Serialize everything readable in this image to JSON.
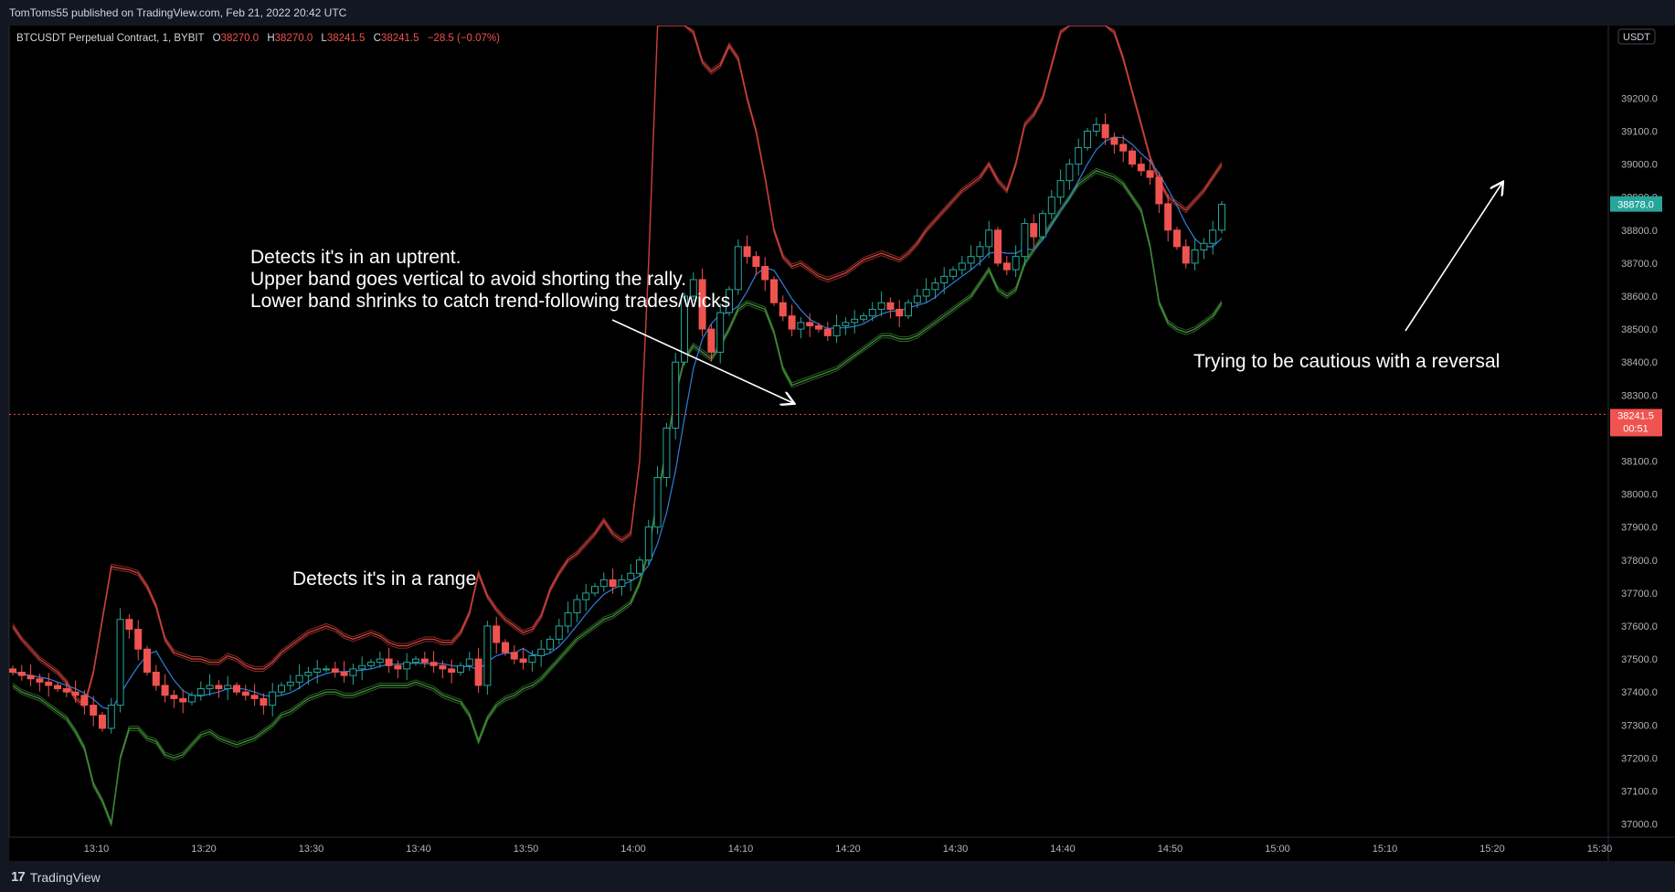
{
  "header": {
    "published": "TomToms55 published on TradingView.com, Feb 21, 2022 20:42 UTC"
  },
  "footer": {
    "brand_logo": "17",
    "brand": "TradingView"
  },
  "symbol_bar": {
    "symbol": "BTCUSDT Perpetual Contract, 1, BYBIT",
    "o_label": "O",
    "o": "38270.0",
    "h_label": "H",
    "h": "38270.0",
    "l_label": "L",
    "l": "38241.5",
    "c_label": "C",
    "c": "38241.5",
    "change": "−28.5 (−0.07%)"
  },
  "annotations": {
    "uptrend_lines": [
      "Detects it's in an uptrent.",
      "Upper band goes vertical to avoid shorting the rally.",
      "Lower band shrinks to catch trend-following trades/wicks"
    ],
    "range": "Detects it's in a range",
    "reversal": "Trying to be cautious with a reversal"
  },
  "price_axis": {
    "currency": "USDT",
    "last_price": "38878.0",
    "current_price": "38241.5",
    "countdown": "00:51"
  },
  "colors": {
    "background": "#000000",
    "up": "#26a69a",
    "down": "#ef5350",
    "upper_band": "#c8403a",
    "lower_band": "#3f8a35",
    "mid_line": "#2f7fd8",
    "current_price_line": "#ef5350",
    "last_price_tag": "#26a69a"
  },
  "chart_data": {
    "type": "candlestick",
    "ylim": [
      36960,
      39420
    ],
    "y_ticks": [
      37000,
      37100,
      37200,
      37300,
      37400,
      37500,
      37600,
      37700,
      37800,
      37900,
      38000,
      38100,
      38200,
      38300,
      38400,
      38500,
      38600,
      38700,
      38800,
      38900,
      39000,
      39100,
      39200
    ],
    "x_ticks": [
      "13:10",
      "13:20",
      "13:30",
      "13:40",
      "13:50",
      "14:00",
      "14:10",
      "14:20",
      "14:30",
      "14:40",
      "14:50",
      "15:00",
      "15:10",
      "15:20",
      "15:30"
    ],
    "close_series": [
      37460,
      37450,
      37440,
      37430,
      37420,
      37410,
      37400,
      37390,
      37360,
      37330,
      37290,
      37360,
      37620,
      37590,
      37530,
      37460,
      37420,
      37390,
      37380,
      37370,
      37390,
      37410,
      37420,
      37410,
      37420,
      37400,
      37390,
      37380,
      37360,
      37400,
      37420,
      37430,
      37450,
      37460,
      37470,
      37470,
      37460,
      37450,
      37470,
      37480,
      37490,
      37500,
      37480,
      37470,
      37490,
      37500,
      37490,
      37480,
      37470,
      37460,
      37480,
      37500,
      37420,
      37600,
      37550,
      37520,
      37500,
      37490,
      37510,
      37530,
      37560,
      37600,
      37640,
      37680,
      37700,
      37720,
      37740,
      37720,
      37740,
      37760,
      37800,
      37900,
      38050,
      38200,
      38400,
      38600,
      38650,
      38500,
      38430,
      38550,
      38620,
      38750,
      38720,
      38690,
      38650,
      38580,
      38540,
      38500,
      38520,
      38510,
      38500,
      38480,
      38510,
      38520,
      38530,
      38540,
      38560,
      38580,
      38560,
      38540,
      38580,
      38600,
      38620,
      38640,
      38660,
      38680,
      38700,
      38720,
      38750,
      38800,
      38700,
      38680,
      38720,
      38820,
      38780,
      38850,
      38900,
      38950,
      39000,
      39050,
      39100,
      39120,
      39080,
      39060,
      39040,
      39000,
      38980,
      38960,
      38880,
      38800,
      38750,
      38700,
      38740,
      38760,
      38800,
      38878
    ],
    "series": [
      {
        "name": "Upper band",
        "values": [
          37600,
          37560,
          37530,
          37500,
          37480,
          37460,
          37430,
          37380,
          37360,
          37460,
          37620,
          37780,
          37775,
          37770,
          37760,
          37720,
          37660,
          37560,
          37520,
          37510,
          37500,
          37500,
          37490,
          37490,
          37510,
          37500,
          37480,
          37470,
          37470,
          37490,
          37520,
          37540,
          37560,
          37580,
          37590,
          37600,
          37590,
          37570,
          37560,
          37570,
          37580,
          37570,
          37550,
          37540,
          37540,
          37550,
          37560,
          37560,
          37550,
          37550,
          37580,
          37640,
          37760,
          37690,
          37650,
          37620,
          37600,
          37580,
          37590,
          37630,
          37710,
          37760,
          37800,
          37820,
          37850,
          37880,
          37920,
          37880,
          37860,
          37880,
          38100,
          38700,
          39500,
          39500,
          39500,
          39500,
          39400,
          39310,
          39280,
          39300,
          39360,
          39320,
          39200,
          39100,
          38960,
          38800,
          38720,
          38690,
          38700,
          38680,
          38660,
          38650,
          38660,
          38670,
          38690,
          38710,
          38720,
          38730,
          38720,
          38710,
          38730,
          38760,
          38800,
          38830,
          38860,
          38890,
          38920,
          38940,
          38960,
          39000,
          38950,
          38920,
          39000,
          39120,
          39150,
          39200,
          39300,
          39400,
          39450,
          39500,
          39500,
          39500,
          39450,
          39400,
          39320,
          39220,
          39120,
          39020,
          38950,
          38900,
          38880,
          38860,
          38890,
          38920,
          38960,
          39000
        ]
      },
      {
        "name": "Lower band",
        "values": [
          37420,
          37400,
          37390,
          37380,
          37360,
          37340,
          37320,
          37280,
          37230,
          37120,
          37070,
          37000,
          37200,
          37290,
          37290,
          37260,
          37250,
          37210,
          37200,
          37210,
          37240,
          37270,
          37280,
          37260,
          37250,
          37240,
          37250,
          37260,
          37280,
          37300,
          37330,
          37340,
          37360,
          37380,
          37390,
          37400,
          37400,
          37390,
          37390,
          37400,
          37410,
          37420,
          37420,
          37420,
          37420,
          37430,
          37420,
          37410,
          37390,
          37380,
          37370,
          37330,
          37250,
          37320,
          37360,
          37380,
          37390,
          37410,
          37420,
          37440,
          37470,
          37500,
          37530,
          37560,
          37580,
          37600,
          37620,
          37630,
          37650,
          37670,
          37730,
          37830,
          37990,
          38140,
          38300,
          38410,
          38450,
          38430,
          38410,
          38450,
          38500,
          38560,
          38580,
          38570,
          38560,
          38490,
          38380,
          38330,
          38340,
          38350,
          38360,
          38370,
          38380,
          38400,
          38420,
          38440,
          38460,
          38480,
          38480,
          38470,
          38470,
          38480,
          38500,
          38520,
          38540,
          38560,
          38580,
          38600,
          38640,
          38680,
          38620,
          38600,
          38620,
          38700,
          38740,
          38780,
          38820,
          38860,
          38900,
          38940,
          38960,
          38980,
          38970,
          38960,
          38940,
          38900,
          38860,
          38750,
          38580,
          38520,
          38500,
          38490,
          38500,
          38520,
          38540,
          38580
        ]
      }
    ],
    "mid_line_name": "",
    "current_price_line": 38241.5,
    "candle_count": 136,
    "grid": false
  }
}
